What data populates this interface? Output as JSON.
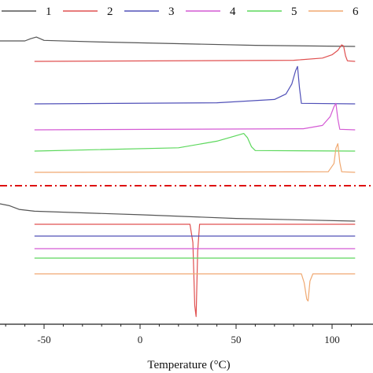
{
  "chart_data": {
    "type": "line",
    "title": "",
    "xlabel": "Temperature (°C)",
    "ylabel": "",
    "xlim": [
      -75,
      112
    ],
    "x_ticks": [
      -50,
      0,
      50,
      100
    ],
    "x_tick_labels": [
      "-50",
      "0",
      "50",
      "100"
    ],
    "y_axis_visible": false,
    "grid": false,
    "legend_placement": "top",
    "divider": {
      "style": "dash-dot",
      "color": "#dd1111"
    },
    "series": [
      {
        "name": "1",
        "color": "#555555"
      },
      {
        "name": "2",
        "color": "#e05050"
      },
      {
        "name": "3",
        "color": "#5050b8"
      },
      {
        "name": "4",
        "color": "#d45ad4"
      },
      {
        "name": "5",
        "color": "#5cd85c"
      },
      {
        "name": "6",
        "color": "#f0a870"
      }
    ],
    "heating_curves": [
      {
        "series": "1",
        "x": [
          -75,
          -60,
          -57,
          -54,
          -50,
          -20,
          20,
          60,
          112
        ],
        "y": [
          0.0,
          0.0,
          0.2,
          0.35,
          0.05,
          -0.1,
          -0.25,
          -0.4,
          -0.5
        ]
      },
      {
        "series": "2",
        "x": [
          -55,
          80,
          95,
          100,
          103,
          105,
          106,
          107,
          108,
          112
        ],
        "y": [
          0.0,
          0.1,
          0.3,
          0.6,
          1.0,
          1.5,
          1.4,
          0.5,
          0.05,
          0.0
        ]
      },
      {
        "series": "3",
        "x": [
          -55,
          40,
          70,
          76,
          79,
          81,
          82,
          83,
          84,
          112
        ],
        "y": [
          0.0,
          0.1,
          0.4,
          0.9,
          1.8,
          3.0,
          3.4,
          1.5,
          0.05,
          0.0
        ]
      },
      {
        "series": "4",
        "x": [
          -55,
          85,
          95,
          99,
          101,
          102,
          103,
          104,
          112
        ],
        "y": [
          0.0,
          0.1,
          0.4,
          1.2,
          2.1,
          2.4,
          1.0,
          0.05,
          0.0
        ]
      },
      {
        "series": "5",
        "x": [
          -55,
          20,
          40,
          50,
          54,
          56,
          58,
          60,
          112
        ],
        "y": [
          0.0,
          0.3,
          0.9,
          1.4,
          1.6,
          1.2,
          0.4,
          0.05,
          0.0
        ]
      },
      {
        "series": "6",
        "x": [
          -55,
          98,
          101,
          102,
          103,
          104,
          105,
          112
        ],
        "y": [
          0.0,
          0.05,
          0.8,
          2.2,
          2.6,
          0.9,
          0.05,
          0.0
        ]
      }
    ],
    "cooling_curves": [
      {
        "series": "1",
        "x": [
          -75,
          -68,
          -63,
          -55,
          0,
          50,
          112
        ],
        "y": [
          0.0,
          -0.3,
          -0.7,
          -0.9,
          -1.3,
          -1.7,
          -2.0
        ]
      },
      {
        "series": "2",
        "x": [
          -55,
          26,
          27.5,
          28.5,
          29.2,
          30,
          31,
          112
        ],
        "y": [
          0.0,
          0.0,
          -2.0,
          -9.0,
          -10.2,
          -3.0,
          0.0,
          0.0
        ]
      },
      {
        "series": "3",
        "x": [
          -55,
          112
        ],
        "y": [
          0.0,
          0.0
        ]
      },
      {
        "series": "4",
        "x": [
          -55,
          112
        ],
        "y": [
          0.0,
          0.0
        ]
      },
      {
        "series": "5",
        "x": [
          -55,
          112
        ],
        "y": [
          0.0,
          0.0
        ]
      },
      {
        "series": "6",
        "x": [
          -55,
          84,
          85.5,
          86.8,
          87.5,
          88.5,
          90,
          112
        ],
        "y": [
          0.0,
          0.0,
          -1.0,
          -2.8,
          -3.0,
          -0.8,
          0.0,
          0.0
        ]
      }
    ]
  }
}
